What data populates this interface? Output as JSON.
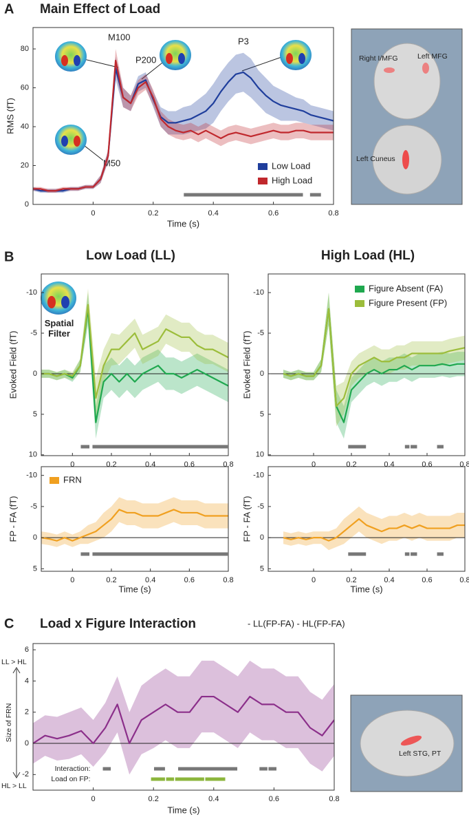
{
  "chart_data": [
    {
      "type": "line",
      "panel_label": "A",
      "title": "Main Effect of Load",
      "xlabel": "Time (s)",
      "ylabel": "RMS (fT)",
      "xlim": [
        -0.2,
        0.8
      ],
      "ylim": [
        0,
        91
      ],
      "xticks": [
        0,
        0.2,
        0.4,
        0.6,
        0.8
      ],
      "yticks": [
        0,
        20,
        40,
        60,
        80
      ],
      "legend": "lower right",
      "zero_line": false,
      "annotations": [
        "M100",
        "P200",
        "P3",
        "M50"
      ],
      "brain_labels": [
        "Right I/MFG",
        "Left MFG",
        "Left Cuneus"
      ],
      "x": [
        -0.2,
        -0.175,
        -0.15,
        -0.125,
        -0.1,
        -0.075,
        -0.05,
        -0.025,
        0,
        0.025,
        0.05,
        0.075,
        0.1,
        0.125,
        0.15,
        0.175,
        0.2,
        0.225,
        0.25,
        0.275,
        0.3,
        0.325,
        0.35,
        0.375,
        0.4,
        0.425,
        0.45,
        0.475,
        0.5,
        0.525,
        0.55,
        0.575,
        0.6,
        0.625,
        0.65,
        0.675,
        0.7,
        0.725,
        0.75,
        0.775,
        0.8
      ],
      "series": [
        {
          "name": "Low Load",
          "color": "#1f3e9c",
          "values": [
            8,
            7,
            7,
            7,
            7,
            8,
            8,
            9,
            9,
            13,
            25,
            70,
            55,
            52,
            62,
            64,
            54,
            45,
            42,
            42,
            43,
            44,
            46,
            48,
            52,
            58,
            63,
            67,
            68,
            65,
            60,
            56,
            53,
            51,
            50,
            49,
            48,
            46,
            45,
            44,
            43
          ],
          "error": [
            1,
            1,
            1,
            1,
            1,
            1,
            1,
            1,
            1,
            2,
            3,
            6,
            5,
            4,
            4,
            4,
            4,
            5,
            6,
            6,
            7,
            7,
            8,
            9,
            10,
            10,
            10,
            10,
            10,
            10,
            9,
            9,
            8,
            8,
            7,
            6,
            6,
            5,
            5,
            5,
            5
          ]
        },
        {
          "name": "High Load",
          "color": "#c0282d",
          "values": [
            8,
            8,
            7,
            7,
            8,
            8,
            8,
            9,
            9,
            13,
            25,
            74,
            55,
            52,
            60,
            63,
            55,
            44,
            40,
            38,
            37,
            38,
            36,
            38,
            36,
            34,
            36,
            37,
            36,
            35,
            36,
            37,
            38,
            37,
            37,
            38,
            38,
            37,
            37,
            37,
            37
          ],
          "error": [
            1,
            1,
            1,
            1,
            1,
            1,
            1,
            1,
            1,
            2,
            3,
            6,
            5,
            4,
            4,
            4,
            4,
            4,
            4,
            4,
            4,
            4,
            4,
            4,
            4,
            4,
            4,
            4,
            4,
            4,
            4,
            4,
            4,
            4,
            4,
            4,
            4,
            4,
            4,
            4,
            4
          ]
        }
      ],
      "significance": [
        {
          "color": "#777777",
          "spans": [
            [
              0.3,
              0.7
            ],
            [
              0.72,
              0.76
            ]
          ]
        }
      ]
    },
    {
      "type": "line",
      "panel_label": "B",
      "title": "Low Load (LL)",
      "ylabel": "Evoked Field (fT)",
      "xlim": [
        -0.16,
        0.8
      ],
      "ylim": [
        -12.3,
        10.1
      ],
      "y_inverted": true,
      "xticks": [
        0,
        0.2,
        0.4,
        0.6,
        0.8
      ],
      "yticks": [
        -10,
        -5,
        0,
        5,
        10
      ],
      "zero_line": true,
      "annotations": [
        "Spatial Filter"
      ],
      "x": [
        -0.16,
        -0.12,
        -0.08,
        -0.04,
        0,
        0.04,
        0.08,
        0.12,
        0.16,
        0.2,
        0.24,
        0.28,
        0.32,
        0.36,
        0.4,
        0.44,
        0.48,
        0.52,
        0.56,
        0.6,
        0.64,
        0.68,
        0.72,
        0.76,
        0.8
      ],
      "series": [
        {
          "name": "Figure Absent (FA)",
          "color": "#1fa84f",
          "values": [
            0,
            0,
            0.3,
            0,
            0.5,
            -1,
            -8,
            6,
            1,
            0,
            1,
            0,
            1,
            0,
            -0.5,
            -1,
            0,
            0,
            0.5,
            0,
            -0.5,
            0,
            0.5,
            1,
            1.5
          ],
          "error": [
            0.5,
            0.5,
            0.5,
            0.5,
            0.5,
            0.8,
            2,
            2,
            2,
            2,
            2,
            2,
            2,
            2,
            2,
            2,
            2,
            2,
            2,
            2,
            2,
            2,
            2,
            2,
            2
          ]
        },
        {
          "name": "Figure Present (FP)",
          "color": "#9cbd3b",
          "values": [
            0,
            0,
            0.3,
            0,
            0.3,
            -1,
            -8.5,
            3,
            -1,
            -3,
            -3,
            -4,
            -5,
            -3,
            -3.5,
            -4,
            -5.5,
            -5,
            -4.5,
            -4.5,
            -3.5,
            -3,
            -3,
            -2.5,
            -2
          ],
          "error": [
            0.5,
            0.5,
            0.5,
            0.5,
            0.5,
            0.8,
            2,
            2.5,
            2,
            2,
            1.8,
            1.8,
            1.8,
            1.8,
            1.8,
            1.8,
            1.8,
            1.8,
            1.8,
            1.8,
            1.8,
            1.8,
            1.8,
            1.8,
            1.8
          ]
        }
      ],
      "significance": [
        {
          "color": "#777777",
          "spans": [
            [
              0.04,
              0.09
            ],
            [
              0.1,
              0.8
            ]
          ]
        }
      ]
    },
    {
      "type": "line",
      "title": "High Load (HL)",
      "ylabel": "Evoked Field (fT)",
      "xlim": [
        -0.24,
        0.8
      ],
      "ylim": [
        -12.3,
        10.1
      ],
      "y_inverted": true,
      "xticks": [
        0,
        0.2,
        0.4,
        0.6,
        0.8
      ],
      "yticks": [
        -10,
        -5,
        0,
        5,
        10
      ],
      "legend": "upper right",
      "zero_line": true,
      "x": [
        -0.16,
        -0.12,
        -0.08,
        -0.04,
        0,
        0.04,
        0.08,
        0.12,
        0.16,
        0.2,
        0.24,
        0.28,
        0.32,
        0.36,
        0.4,
        0.44,
        0.48,
        0.52,
        0.56,
        0.6,
        0.64,
        0.68,
        0.72,
        0.76,
        0.8
      ],
      "series": [
        {
          "name": "Figure Absent (FA)",
          "color": "#1fa84f",
          "values": [
            0,
            0.3,
            0,
            0.3,
            0.3,
            -1,
            -8,
            4,
            6,
            2,
            1,
            0,
            -0.5,
            0,
            -0.5,
            -0.5,
            -1,
            -0.5,
            -1,
            -1,
            -1,
            -1.2,
            -1,
            -1.2,
            -1.2
          ],
          "error": [
            0.5,
            0.5,
            0.5,
            0.5,
            0.5,
            0.8,
            2,
            2,
            2,
            1.5,
            1.5,
            1.5,
            1.5,
            1.5,
            1.5,
            1.5,
            1.5,
            1.5,
            1.5,
            1.5,
            1.5,
            1.5,
            1.5,
            1.5,
            1.5
          ]
        },
        {
          "name": "Figure Present (FP)",
          "color": "#9cbd3b",
          "values": [
            0,
            0.3,
            0,
            0.3,
            0.3,
            -1,
            -8,
            4,
            3,
            0,
            -1,
            -1.5,
            -2,
            -1.5,
            -1.5,
            -2,
            -2,
            -2.5,
            -2.5,
            -2.5,
            -2.5,
            -2.5,
            -2.8,
            -3,
            -3.2
          ],
          "error": [
            0.5,
            0.5,
            0.5,
            0.5,
            0.5,
            0.8,
            2,
            2.5,
            2,
            1.5,
            1.5,
            1.5,
            1.5,
            1.5,
            1.5,
            1.5,
            1.5,
            1.5,
            1.5,
            1.5,
            1.5,
            1.5,
            1.5,
            1.5,
            1.5
          ]
        }
      ],
      "significance": [
        {
          "color": "#777777",
          "spans": [
            [
              0.18,
              0.28
            ],
            [
              0.48,
              0.51
            ],
            [
              0.51,
              0.55
            ],
            [
              0.65,
              0.69
            ]
          ]
        }
      ]
    },
    {
      "type": "line",
      "xlabel": "Time (s)",
      "ylabel": "FP - FA (fT)",
      "xlim": [
        -0.16,
        0.8
      ],
      "ylim": [
        -11.4,
        5.4
      ],
      "y_inverted": true,
      "xticks": [
        0,
        0.2,
        0.4,
        0.6,
        0.8
      ],
      "yticks": [
        -10,
        -5,
        0,
        5
      ],
      "legend": "upper left",
      "zero_line": true,
      "x": [
        -0.16,
        -0.12,
        -0.08,
        -0.04,
        0,
        0.04,
        0.08,
        0.12,
        0.16,
        0.2,
        0.24,
        0.28,
        0.32,
        0.36,
        0.4,
        0.44,
        0.48,
        0.52,
        0.56,
        0.6,
        0.64,
        0.68,
        0.72,
        0.76,
        0.8
      ],
      "series": [
        {
          "name": "FRN",
          "color": "#f0a020",
          "values": [
            0,
            0.2,
            0.5,
            0,
            0.5,
            0,
            -0.5,
            -1,
            -2,
            -3,
            -4.5,
            -4,
            -4,
            -3.5,
            -3.5,
            -3.5,
            -4,
            -4.5,
            -4,
            -4,
            -4,
            -3.5,
            -3.5,
            -3.5,
            -3.5
          ],
          "error": [
            1,
            1,
            1,
            1,
            1,
            1,
            1.5,
            1.5,
            2,
            2,
            2,
            2,
            2,
            2,
            2,
            2,
            2,
            2,
            2,
            2,
            2,
            2,
            2,
            2,
            2
          ]
        }
      ],
      "significance": [
        {
          "color": "#777777",
          "spans": [
            [
              0.04,
              0.09
            ],
            [
              0.1,
              0.8
            ]
          ]
        }
      ]
    },
    {
      "type": "line",
      "xlabel": "Time (s)",
      "ylabel": "FP - FA (fT)",
      "xlim": [
        -0.24,
        0.8
      ],
      "ylim": [
        -11.4,
        5.4
      ],
      "y_inverted": true,
      "xticks": [
        0,
        0.2,
        0.4,
        0.6,
        0.8
      ],
      "yticks": [
        -10,
        -5,
        0,
        5
      ],
      "zero_line": true,
      "x": [
        -0.16,
        -0.12,
        -0.08,
        -0.04,
        0,
        0.04,
        0.08,
        0.12,
        0.16,
        0.2,
        0.24,
        0.28,
        0.32,
        0.36,
        0.4,
        0.44,
        0.48,
        0.52,
        0.56,
        0.6,
        0.64,
        0.68,
        0.72,
        0.76,
        0.8
      ],
      "series": [
        {
          "color": "#f0a020",
          "values": [
            0,
            0.3,
            0,
            0.3,
            0,
            0,
            0.5,
            0,
            -1,
            -2,
            -3,
            -2,
            -1.5,
            -1,
            -1.5,
            -1.5,
            -2,
            -1.5,
            -2,
            -1.5,
            -1.5,
            -1.5,
            -1.5,
            -2,
            -2
          ],
          "error": [
            1,
            1,
            1,
            1,
            1,
            1,
            1.5,
            1.5,
            2,
            2,
            2,
            2,
            2,
            2,
            2,
            2,
            2,
            2,
            2,
            2,
            2,
            2,
            2,
            2,
            2
          ]
        }
      ],
      "significance": [
        {
          "color": "#777777",
          "spans": [
            [
              0.18,
              0.28
            ],
            [
              0.48,
              0.51
            ],
            [
              0.51,
              0.55
            ],
            [
              0.65,
              0.69
            ]
          ]
        }
      ]
    },
    {
      "type": "line",
      "panel_label": "C",
      "title": "Load x Figure Interaction",
      "subtitle": "- LL(FP-FA) - HL(FP-FA)",
      "xlabel": "Time (s)",
      "ylabel": "Size of FRN",
      "y_arrow_labels": [
        "LL > HL",
        "HL > LL"
      ],
      "xlim": [
        -0.2,
        0.8
      ],
      "ylim": [
        -3,
        6.4
      ],
      "xticks": [
        0,
        0.2,
        0.4,
        0.6,
        0.8
      ],
      "yticks": [
        -2,
        0,
        2,
        4,
        6
      ],
      "zero_line": true,
      "brain_labels": [
        "Left STG, PT"
      ],
      "x": [
        -0.2,
        -0.16,
        -0.12,
        -0.08,
        -0.04,
        0,
        0.04,
        0.08,
        0.12,
        0.16,
        0.2,
        0.24,
        0.28,
        0.32,
        0.36,
        0.4,
        0.44,
        0.48,
        0.52,
        0.56,
        0.6,
        0.64,
        0.68,
        0.72,
        0.76,
        0.8
      ],
      "series": [
        {
          "color": "#8b2f8a",
          "values": [
            0,
            0.5,
            0.3,
            0.5,
            0.8,
            0,
            1,
            2.5,
            0,
            1.5,
            2,
            2.5,
            2,
            2,
            3,
            3,
            2.5,
            2,
            3,
            2.5,
            2.5,
            2,
            2,
            1,
            0.5,
            1.5
          ],
          "error": [
            1.3,
            1.3,
            1.4,
            1.5,
            1.5,
            1.5,
            1.6,
            1.8,
            2,
            2.2,
            2.3,
            2.3,
            2.3,
            2.3,
            2.3,
            2.3,
            2.3,
            2.3,
            2.3,
            2.3,
            2.3,
            2.3,
            2.3,
            2.3,
            2.3,
            2.3
          ]
        }
      ],
      "significance": [
        {
          "name": "Interaction:",
          "color": "#777777",
          "spans": [
            [
              0.03,
              0.06
            ],
            [
              0.2,
              0.24
            ],
            [
              0.28,
              0.48
            ],
            [
              0.55,
              0.58
            ],
            [
              0.58,
              0.61
            ]
          ]
        },
        {
          "name": "Load on FP:",
          "color": "#8cb63c",
          "spans": [
            [
              0.19,
              0.24
            ],
            [
              0.24,
              0.27
            ],
            [
              0.27,
              0.37
            ],
            [
              0.37,
              0.44
            ]
          ]
        }
      ]
    }
  ]
}
